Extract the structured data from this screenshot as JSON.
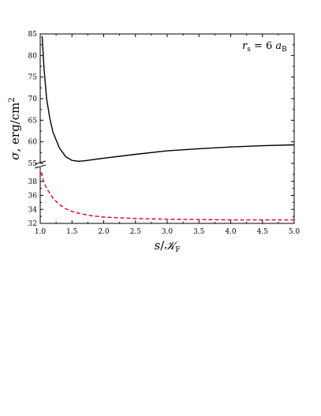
{
  "chart_data": {
    "type": "line",
    "xlabel": "s/𝒦F",
    "ylabel": "σ, erg/cm²",
    "annotation": "rs = 6 aB",
    "xlim": [
      1.0,
      5.0
    ],
    "x_ticks": [
      "1.0",
      "1.5",
      "2.0",
      "2.5",
      "3.0",
      "3.5",
      "4.0",
      "4.5",
      "5.0"
    ],
    "upper_panel": {
      "ylim": [
        55,
        85
      ],
      "y_ticks": [
        "55",
        "60",
        "65",
        "70",
        "75",
        "80",
        "85"
      ]
    },
    "lower_panel": {
      "ylim": [
        32,
        40
      ],
      "y_ticks": [
        "32",
        "34",
        "36",
        "38"
      ]
    },
    "axis_break": true,
    "series": [
      {
        "panel": "upper",
        "style": "solid",
        "color": "#000000",
        "x": [
          1.03,
          1.06,
          1.1,
          1.15,
          1.2,
          1.3,
          1.4,
          1.5,
          1.6,
          1.7,
          1.8,
          2.0,
          2.5,
          3.0,
          3.5,
          4.0,
          4.5,
          5.0
        ],
        "y": [
          84.5,
          77.0,
          70.0,
          65.5,
          62.3,
          58.6,
          56.6,
          55.7,
          55.5,
          55.6,
          55.8,
          56.2,
          57.1,
          57.9,
          58.4,
          58.8,
          59.1,
          59.3
        ]
      },
      {
        "panel": "lower",
        "style": "dashed",
        "color": "#e0001b",
        "x": [
          1.02,
          1.05,
          1.1,
          1.2,
          1.3,
          1.4,
          1.5,
          1.6,
          1.8,
          2.0,
          2.5,
          3.0,
          3.5,
          4.0,
          4.5,
          5.0
        ],
        "y": [
          39.3,
          38.1,
          37.0,
          35.6,
          34.7,
          34.1,
          33.7,
          33.45,
          33.1,
          32.9,
          32.7,
          32.6,
          32.55,
          32.5,
          32.5,
          32.5
        ]
      }
    ]
  }
}
